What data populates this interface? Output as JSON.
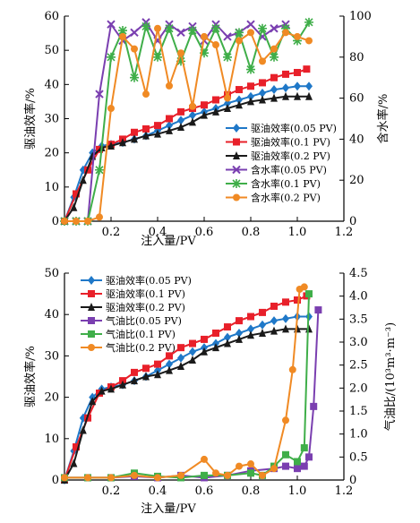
{
  "chart_data": [
    {
      "type": "line",
      "xlabel": "注入量/PV",
      "ylabel": "驱油效率/%",
      "y2label": "含水率/%",
      "xlim": [
        0,
        1.2
      ],
      "ylim": [
        0,
        60
      ],
      "y2lim": [
        0,
        100
      ],
      "xticks": [
        "0.2",
        "0.4",
        "0.6",
        "0.8",
        "1.0",
        "1.2"
      ],
      "yticks": [
        "0",
        "10",
        "20",
        "30",
        "40",
        "50",
        "60"
      ],
      "y2ticks": [
        "0",
        "20",
        "40",
        "60",
        "80",
        "100"
      ],
      "grid": false,
      "legend_position": "lower-right",
      "series": [
        {
          "name": "驱油效率(0.05 PV)",
          "axis": "left",
          "color": "#1f78c8",
          "marker": "diamond",
          "x": [
            0,
            0.04,
            0.08,
            0.12,
            0.16,
            0.2,
            0.25,
            0.3,
            0.35,
            0.4,
            0.45,
            0.5,
            0.55,
            0.6,
            0.65,
            0.7,
            0.75,
            0.8,
            0.85,
            0.9,
            0.95,
            1.0,
            1.05
          ],
          "y": [
            0,
            7,
            15,
            20,
            22,
            22.5,
            23,
            24,
            25,
            26.5,
            28,
            29.5,
            31,
            32,
            33,
            34.5,
            35.5,
            36.5,
            37.5,
            38.5,
            39,
            39.5,
            39.5
          ]
        },
        {
          "name": "驱油效率(0.1 PV)",
          "axis": "left",
          "color": "#e8202a",
          "marker": "square",
          "x": [
            0,
            0.05,
            0.1,
            0.15,
            0.2,
            0.25,
            0.3,
            0.35,
            0.4,
            0.45,
            0.5,
            0.55,
            0.6,
            0.65,
            0.7,
            0.75,
            0.8,
            0.85,
            0.9,
            0.95,
            1.0,
            1.04
          ],
          "y": [
            0,
            8,
            15,
            21,
            22.5,
            24,
            26,
            27,
            28,
            30,
            32,
            33,
            34,
            35.5,
            37,
            38.5,
            39.5,
            40.5,
            42,
            43,
            43.5,
            44.5
          ]
        },
        {
          "name": "驱油效率(0.2 PV)",
          "axis": "left",
          "color": "#1a1a1a",
          "marker": "triangle",
          "x": [
            0,
            0.04,
            0.08,
            0.12,
            0.16,
            0.2,
            0.25,
            0.3,
            0.35,
            0.4,
            0.45,
            0.5,
            0.55,
            0.6,
            0.65,
            0.7,
            0.75,
            0.8,
            0.85,
            0.9,
            0.95,
            1.0,
            1.05
          ],
          "y": [
            0,
            4,
            12,
            19,
            21.5,
            22,
            23,
            24,
            25,
            25.5,
            26.5,
            27.5,
            29,
            31,
            32,
            33,
            34,
            35,
            35.5,
            36,
            36.5,
            36.5,
            36.5
          ]
        },
        {
          "name": "含水率(0.05 PV)",
          "axis": "right",
          "color": "#7a3fb0",
          "marker": "x",
          "x": [
            0,
            0.05,
            0.1,
            0.15,
            0.2,
            0.25,
            0.3,
            0.35,
            0.4,
            0.45,
            0.5,
            0.55,
            0.6,
            0.65,
            0.7,
            0.75,
            0.8,
            0.85,
            0.9,
            0.95
          ],
          "y": [
            0,
            0,
            0,
            62,
            96,
            88,
            92,
            97,
            88,
            96,
            92,
            95,
            88,
            96,
            90,
            92,
            96,
            90,
            94,
            96
          ]
        },
        {
          "name": "含水率(0.1 PV)",
          "axis": "right",
          "color": "#3fae49",
          "marker": "star",
          "x": [
            0,
            0.05,
            0.1,
            0.15,
            0.2,
            0.25,
            0.3,
            0.35,
            0.4,
            0.45,
            0.5,
            0.55,
            0.6,
            0.65,
            0.7,
            0.75,
            0.8,
            0.85,
            0.9,
            0.95,
            1.0,
            1.05
          ],
          "y": [
            0,
            0,
            0,
            25,
            80,
            93,
            70,
            95,
            80,
            94,
            78,
            93,
            82,
            94,
            80,
            92,
            74,
            94,
            80,
            94,
            88,
            97
          ]
        },
        {
          "name": "含水率(0.2 PV)",
          "axis": "right",
          "color": "#f08a24",
          "marker": "circle",
          "x": [
            0,
            0.05,
            0.1,
            0.15,
            0.2,
            0.25,
            0.3,
            0.35,
            0.4,
            0.45,
            0.5,
            0.55,
            0.6,
            0.65,
            0.7,
            0.75,
            0.8,
            0.85,
            0.9,
            0.95,
            1.0,
            1.05
          ],
          "y": [
            0,
            0,
            0,
            2,
            55,
            90,
            84,
            62,
            94,
            66,
            82,
            56,
            90,
            86,
            60,
            88,
            92,
            78,
            84,
            92,
            90,
            88
          ]
        }
      ]
    },
    {
      "type": "line",
      "xlabel": "注入量/PV",
      "ylabel": "驱油效率/%",
      "y2label": "气油比/(10³m³·m⁻³)",
      "xlim": [
        0,
        1.2
      ],
      "ylim": [
        0,
        50
      ],
      "y2lim": [
        0,
        4.5
      ],
      "xticks": [
        "0.2",
        "0.4",
        "0.6",
        "0.8",
        "1.0",
        "1.2"
      ],
      "yticks": [
        "0",
        "10",
        "20",
        "30",
        "40",
        "50"
      ],
      "y2ticks": [
        "0",
        "0.5",
        "1.0",
        "1.5",
        "2.0",
        "2.5",
        "3.0",
        "3.5",
        "4.0",
        "4.5"
      ],
      "grid": false,
      "legend_position": "top-left",
      "series": [
        {
          "name": "驱油效率(0.05 PV)",
          "axis": "left",
          "color": "#1f78c8",
          "marker": "diamond",
          "x": [
            0,
            0.04,
            0.08,
            0.12,
            0.16,
            0.2,
            0.25,
            0.3,
            0.35,
            0.4,
            0.45,
            0.5,
            0.55,
            0.6,
            0.65,
            0.7,
            0.75,
            0.8,
            0.85,
            0.9,
            0.95,
            1.0,
            1.05
          ],
          "y": [
            0,
            7,
            15,
            20,
            22,
            22.5,
            23,
            24,
            25,
            26.5,
            28,
            29.5,
            31,
            32,
            33,
            34.5,
            35.5,
            36.5,
            37.5,
            38.5,
            39,
            39.5,
            39.5
          ]
        },
        {
          "name": "驱油效率(0.1 PV)",
          "axis": "left",
          "color": "#e8202a",
          "marker": "square",
          "x": [
            0,
            0.05,
            0.1,
            0.15,
            0.2,
            0.25,
            0.3,
            0.35,
            0.4,
            0.45,
            0.5,
            0.55,
            0.6,
            0.65,
            0.7,
            0.75,
            0.8,
            0.85,
            0.9,
            0.95,
            1.0,
            1.04
          ],
          "y": [
            0,
            8,
            15,
            21,
            22.5,
            24,
            26,
            27,
            28,
            30,
            32,
            33,
            34,
            35.5,
            37,
            38.5,
            39.5,
            40.5,
            42,
            43,
            43.5,
            44.5
          ]
        },
        {
          "name": "驱油效率(0.2 PV)",
          "axis": "left",
          "color": "#1a1a1a",
          "marker": "triangle",
          "x": [
            0,
            0.04,
            0.08,
            0.12,
            0.16,
            0.2,
            0.25,
            0.3,
            0.35,
            0.4,
            0.45,
            0.5,
            0.55,
            0.6,
            0.65,
            0.7,
            0.75,
            0.8,
            0.85,
            0.9,
            0.95,
            1.0,
            1.05
          ],
          "y": [
            0,
            4,
            12,
            19,
            21.5,
            22,
            23,
            24,
            25,
            25.5,
            26.5,
            27.5,
            29,
            31,
            32,
            33,
            34,
            35,
            35.5,
            36,
            36.5,
            36.5,
            36.5
          ]
        },
        {
          "name": "气油比(0.05 PV)",
          "axis": "right",
          "color": "#7a3fb0",
          "marker": "square",
          "x": [
            0,
            0.1,
            0.2,
            0.3,
            0.4,
            0.5,
            0.6,
            0.7,
            0.8,
            0.9,
            0.95,
            1.0,
            1.03,
            1.05,
            1.07,
            1.09
          ],
          "y": [
            0.05,
            0.05,
            0.05,
            0.08,
            0.05,
            0.1,
            0.05,
            0.1,
            0.2,
            0.25,
            0.3,
            0.25,
            0.3,
            0.5,
            1.6,
            3.7
          ]
        },
        {
          "name": "气油比(0.1 PV)",
          "axis": "right",
          "color": "#3fae49",
          "marker": "square",
          "x": [
            0,
            0.1,
            0.2,
            0.3,
            0.4,
            0.5,
            0.6,
            0.7,
            0.8,
            0.85,
            0.9,
            0.95,
            1.0,
            1.03,
            1.05
          ],
          "y": [
            0.05,
            0.05,
            0.05,
            0.15,
            0.08,
            0.05,
            0.1,
            0.1,
            0.15,
            0.1,
            0.3,
            0.55,
            0.4,
            0.7,
            4.05
          ]
        },
        {
          "name": "气油比(0.2 PV)",
          "axis": "right",
          "color": "#f08a24",
          "marker": "circle",
          "x": [
            0,
            0.1,
            0.2,
            0.3,
            0.4,
            0.5,
            0.6,
            0.65,
            0.7,
            0.75,
            0.8,
            0.85,
            0.9,
            0.95,
            0.98,
            1.01,
            1.03
          ],
          "y": [
            0.05,
            0.05,
            0.05,
            0.1,
            0.05,
            0.1,
            0.45,
            0.15,
            0.1,
            0.3,
            0.35,
            0.1,
            0.25,
            1.3,
            2.4,
            4.15,
            4.2
          ]
        }
      ]
    }
  ]
}
